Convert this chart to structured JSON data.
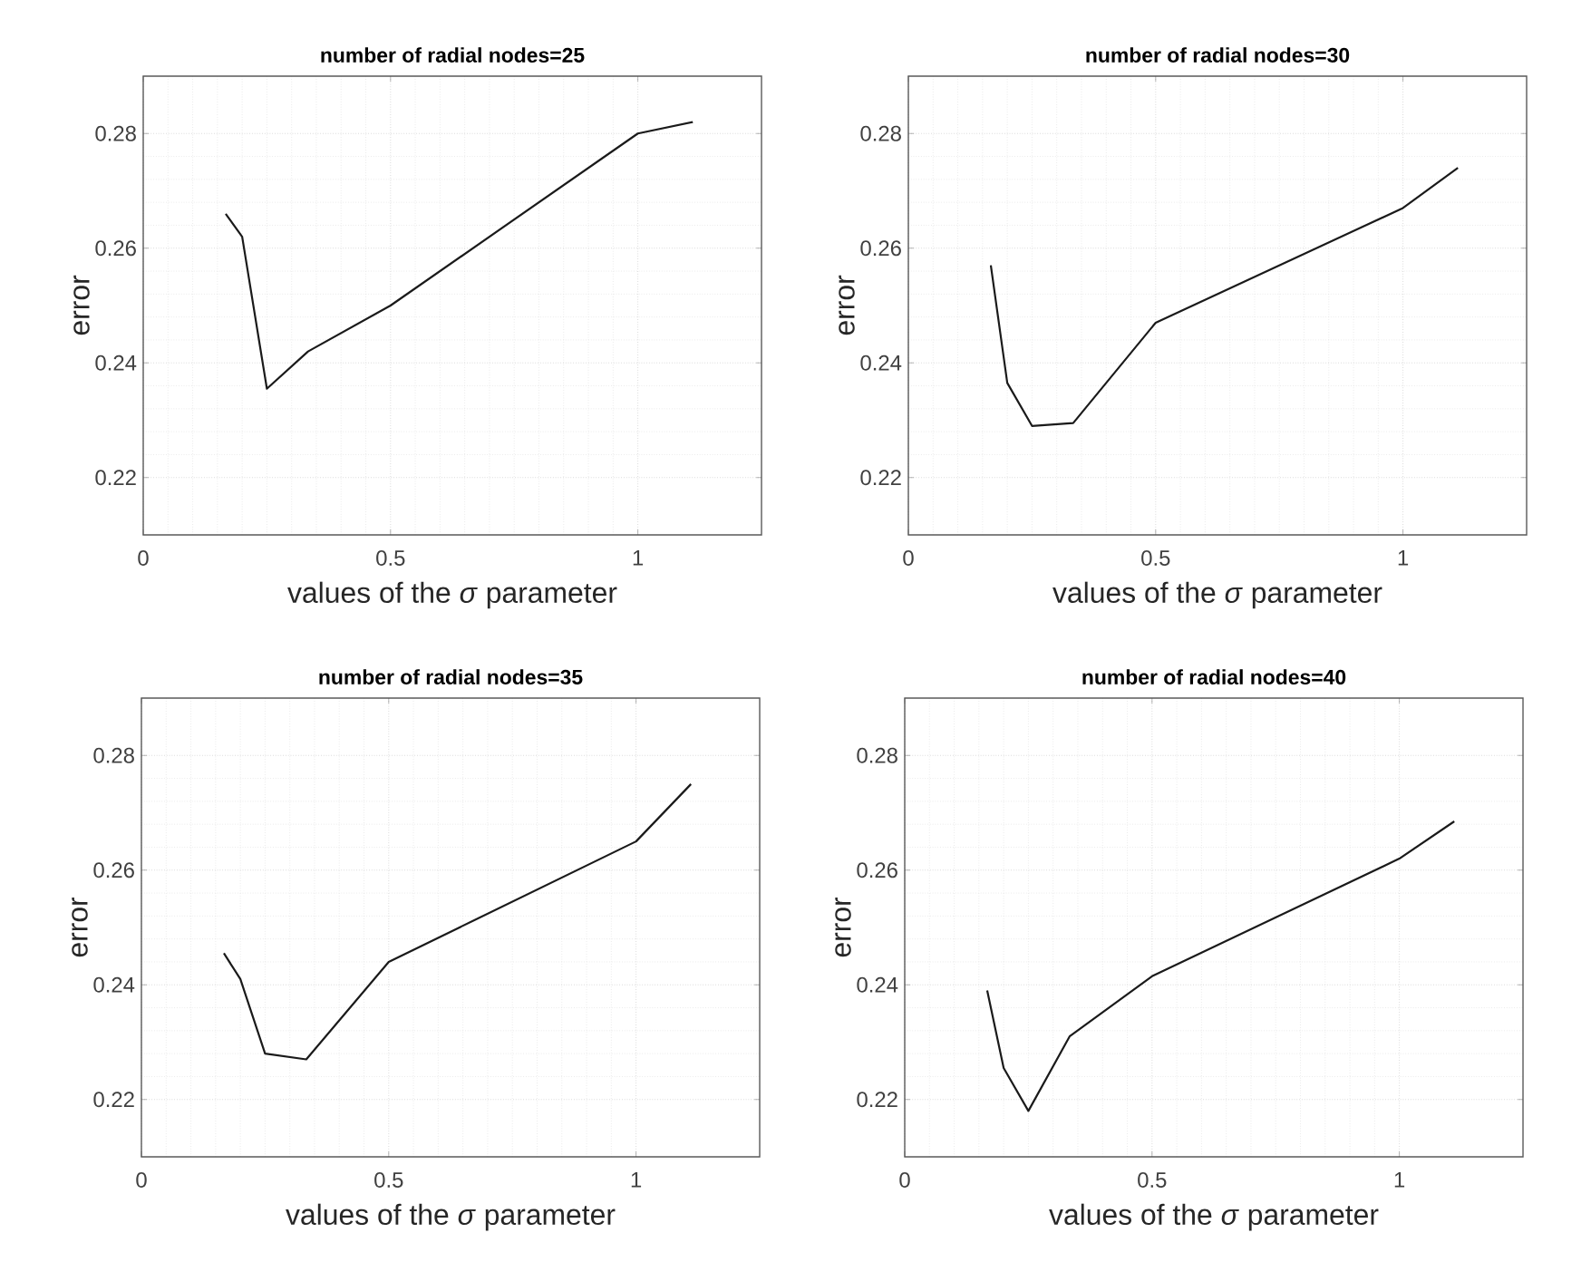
{
  "chart_data": [
    {
      "type": "line",
      "title": "number of radial nodes=25",
      "xlabel": "values of the *σ* parameter",
      "ylabel": "error",
      "x": [
        0.1667,
        0.2,
        0.25,
        0.3333,
        0.5,
        1,
        1.1111
      ],
      "values": [
        0.266,
        0.262,
        0.2355,
        0.242,
        0.25,
        0.28,
        0.282
      ],
      "color": "#1a1a1a",
      "xlim": [
        0,
        1.25
      ],
      "ylim": [
        0.21,
        0.29
      ],
      "xticks": [
        0,
        0.5,
        1
      ],
      "yticks": [
        0.22,
        0.24,
        0.26,
        0.28
      ],
      "grid": true
    },
    {
      "type": "line",
      "title": "number of radial nodes=30",
      "xlabel": "values of the *σ* parameter",
      "ylabel": "error",
      "x": [
        0.1667,
        0.2,
        0.25,
        0.3333,
        0.5,
        1,
        1.1111
      ],
      "values": [
        0.257,
        0.2365,
        0.229,
        0.2295,
        0.247,
        0.267,
        0.274
      ],
      "color": "#1a1a1a",
      "xlim": [
        0,
        1.25
      ],
      "ylim": [
        0.21,
        0.29
      ],
      "xticks": [
        0,
        0.5,
        1
      ],
      "yticks": [
        0.22,
        0.24,
        0.26,
        0.28
      ],
      "grid": true
    },
    {
      "type": "line",
      "title": "number of radial nodes=35",
      "xlabel": "values of the *σ* parameter",
      "ylabel": "error",
      "x": [
        0.1667,
        0.2,
        0.25,
        0.3333,
        0.5,
        1,
        1.1111
      ],
      "values": [
        0.2455,
        0.241,
        0.228,
        0.227,
        0.244,
        0.265,
        0.275
      ],
      "color": "#1a1a1a",
      "xlim": [
        0,
        1.25
      ],
      "ylim": [
        0.21,
        0.29
      ],
      "xticks": [
        0,
        0.5,
        1
      ],
      "yticks": [
        0.22,
        0.24,
        0.26,
        0.28
      ],
      "grid": true
    },
    {
      "type": "line",
      "title": "number of radial nodes=40",
      "xlabel": "values of the *σ* parameter",
      "ylabel": "error",
      "x": [
        0.1667,
        0.2,
        0.25,
        0.3333,
        0.5,
        1,
        1.1111
      ],
      "values": [
        0.239,
        0.2255,
        0.218,
        0.231,
        0.2415,
        0.262,
        0.2685
      ],
      "color": "#1a1a1a",
      "xlim": [
        0,
        1.25
      ],
      "ylim": [
        0.21,
        0.29
      ],
      "xticks": [
        0,
        0.5,
        1
      ],
      "yticks": [
        0.22,
        0.24,
        0.26,
        0.28
      ],
      "grid": true
    }
  ]
}
